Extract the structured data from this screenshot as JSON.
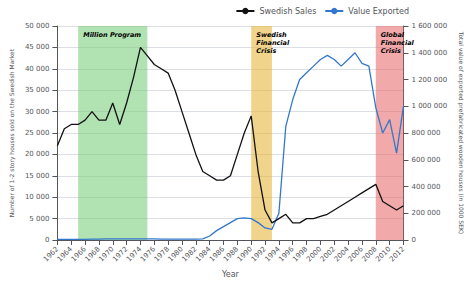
{
  "chart_data": {
    "type": "line",
    "x_label": "Year",
    "y_label": "Number of 1-2 story houses sold on the Swedish Market",
    "y2_label": "Total value of exported prefabricated wooden houses (in 1000 SEK)",
    "x": [
      1962,
      1963,
      1964,
      1965,
      1966,
      1967,
      1968,
      1969,
      1970,
      1971,
      1972,
      1973,
      1974,
      1975,
      1976,
      1977,
      1978,
      1979,
      1980,
      1981,
      1982,
      1983,
      1984,
      1985,
      1986,
      1987,
      1988,
      1989,
      1990,
      1991,
      1992,
      1993,
      1994,
      1995,
      1996,
      1997,
      1998,
      1999,
      2000,
      2001,
      2002,
      2003,
      2004,
      2005,
      2006,
      2007,
      2008,
      2009,
      2010,
      2011,
      2012
    ],
    "series": [
      {
        "name": "Swedish Sales",
        "color": "#111111",
        "values": [
          22000,
          26000,
          27000,
          27000,
          28000,
          30000,
          28000,
          28000,
          32000,
          27000,
          32000,
          38000,
          45000,
          43000,
          41000,
          40000,
          39000,
          35000,
          30000,
          25000,
          20000,
          16000,
          15000,
          14000,
          14000,
          15000,
          20000,
          25000,
          29000,
          16000,
          7000,
          4000,
          5000,
          6000,
          4000,
          4000,
          5000,
          5000,
          5500,
          6000,
          7000,
          8000,
          9000,
          10000,
          11000,
          12000,
          13000,
          9000,
          8000,
          7000,
          8000
        ]
      },
      {
        "name": "Value Exported",
        "color": "#3377cc",
        "axis": "y2",
        "values": [
          5000,
          5000,
          5000,
          5000,
          5000,
          6000,
          7000,
          8000,
          8000,
          8000,
          8000,
          8000,
          8000,
          8000,
          8000,
          7000,
          7000,
          7000,
          7000,
          7000,
          7000,
          8000,
          30000,
          70000,
          100000,
          130000,
          160000,
          165000,
          160000,
          130000,
          90000,
          80000,
          200000,
          850000,
          1050000,
          1200000,
          1250000,
          1300000,
          1350000,
          1380000,
          1350000,
          1300000,
          1350000,
          1400000,
          1320000,
          1300000,
          990000,
          800000,
          900000,
          650000,
          1000000
        ]
      }
    ],
    "xlim": [
      1962,
      2012
    ],
    "xticks": [
      1962,
      1964,
      1966,
      1968,
      1970,
      1972,
      1974,
      1976,
      1978,
      1980,
      1982,
      1984,
      1986,
      1988,
      1990,
      1992,
      1994,
      1996,
      1998,
      2000,
      2002,
      2004,
      2006,
      2008,
      2010,
      2012
    ],
    "ylim": [
      0,
      50000
    ],
    "yticks": [
      0,
      {
        "value": 5000,
        "label": "5 000"
      },
      {
        "value": 10000,
        "label": "10 000"
      },
      {
        "value": 15000,
        "label": "15 000"
      },
      {
        "value": 20000,
        "label": "20 000"
      },
      {
        "value": 25000,
        "label": "25 000"
      },
      {
        "value": 30000,
        "label": "30 000"
      },
      {
        "value": 35000,
        "label": "35 000"
      },
      {
        "value": 40000,
        "label": "40 000"
      },
      {
        "value": 45000,
        "label": "45 000"
      },
      {
        "value": 50000,
        "label": "50 000"
      }
    ],
    "y2lim": [
      0,
      1600000
    ],
    "y2ticks": [
      0,
      {
        "value": 200000,
        "label": "200 000"
      },
      {
        "value": 400000,
        "label": "400 000"
      },
      {
        "value": 600000,
        "label": "600 000"
      },
      {
        "value": 800000,
        "label": "800 000"
      },
      {
        "value": 1000000,
        "label": "1 000 000"
      },
      {
        "value": 1200000,
        "label": "1 200 000"
      },
      {
        "value": 1400000,
        "label": "1 400 000"
      },
      {
        "value": 1600000,
        "label": "1 600 000"
      }
    ],
    "regions": [
      {
        "start": 1965,
        "end": 1975,
        "color": "#7dcf7d",
        "label": "Million Program"
      },
      {
        "start": 1990,
        "end": 1993,
        "color": "#e8b840",
        "label": "Swedish\nFinancial\nCrisis"
      },
      {
        "start": 2008,
        "end": 2012,
        "color": "#e87070",
        "label": "Global\nFinancial\nCrisis"
      }
    ],
    "grid": true,
    "legend": "upper right"
  }
}
